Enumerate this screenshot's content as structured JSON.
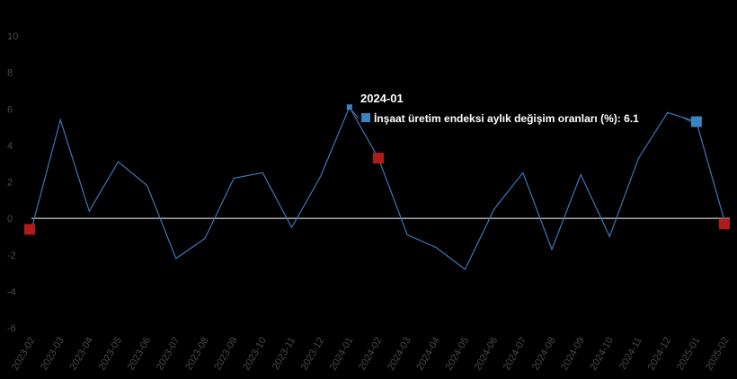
{
  "chart_data": {
    "type": "line",
    "x": [
      "2023-02",
      "2023-03",
      "2023-04",
      "2023-05",
      "2023-06",
      "2023-07",
      "2023-08",
      "2023-09",
      "2023-10",
      "2023-11",
      "2023-12",
      "2024-01",
      "2024-02",
      "2024-03",
      "2024-04",
      "2024-05",
      "2024-06",
      "2024-07",
      "2024-08",
      "2024-09",
      "2024-10",
      "2024-11",
      "2024-12",
      "2025-01",
      "2025-02"
    ],
    "series": [
      {
        "name": "İnşaat üretim endeksi aylık değişim oranları (%)",
        "values": [
          -0.6,
          5.4,
          0.4,
          3.1,
          1.8,
          -2.2,
          -1.1,
          2.2,
          2.5,
          -0.5,
          2.3,
          6.1,
          3.3,
          -0.9,
          -1.6,
          -2.8,
          0.5,
          2.5,
          -1.7,
          2.4,
          -1.0,
          3.3,
          5.8,
          5.3,
          -0.3
        ]
      }
    ],
    "ylim": [
      -6,
      10
    ],
    "yticks": [
      -6,
      -4,
      -2,
      0,
      2,
      4,
      6,
      8,
      10
    ],
    "markers": {
      "low": [
        0,
        12,
        24
      ],
      "high": [
        23
      ]
    },
    "colors": {
      "line": "#3a78b8",
      "zero_line": "#ffffff",
      "marker_low": "#b01c1c",
      "marker_high": "#3a84c4"
    },
    "tooltip": {
      "title": "2024-01",
      "label": "İnşaat üretim endeksi aylık değişim oranları (%): 6.1",
      "index": 11
    }
  }
}
